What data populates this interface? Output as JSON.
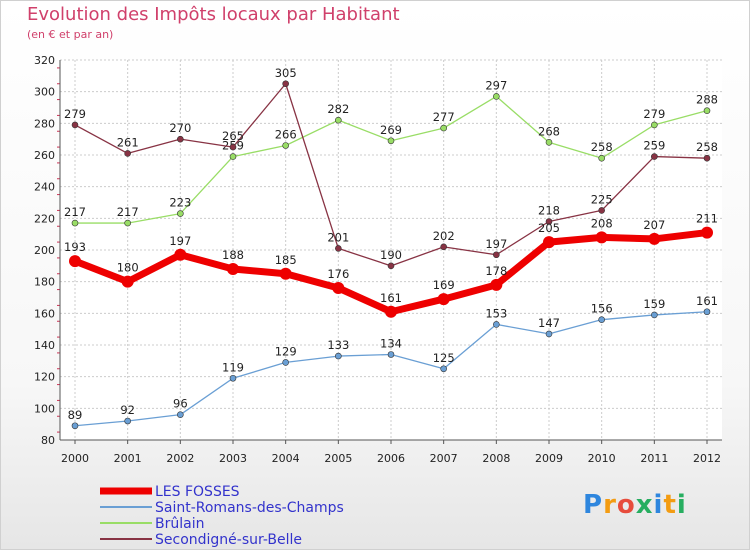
{
  "header": {
    "title": "Evolution des Impôts locaux par Habitant",
    "subtitle": "(en € et par an)"
  },
  "logo": {
    "text": "Proxiti"
  },
  "chart_data": {
    "type": "line",
    "title": "Evolution des Impôts locaux par Habitant",
    "subtitle": "(en € et par an)",
    "x": [
      "2000",
      "2001",
      "2002",
      "2003",
      "2004",
      "2005",
      "2006",
      "2007",
      "2008",
      "2009",
      "2010",
      "2011",
      "2012"
    ],
    "ylim": [
      80,
      320
    ],
    "yticks": [
      80,
      100,
      120,
      140,
      160,
      180,
      200,
      220,
      240,
      260,
      280,
      300,
      320
    ],
    "grid": true,
    "legend_position": "bottom-left",
    "series": [
      {
        "name": "LES FOSSES",
        "color": "#ee0000",
        "values": [
          193,
          180,
          197,
          188,
          185,
          176,
          161,
          169,
          178,
          205,
          208,
          207,
          211
        ]
      },
      {
        "name": "Saint-Romans-des-Champs",
        "color": "#6a9fd4",
        "values": [
          89,
          92,
          96,
          119,
          129,
          133,
          134,
          125,
          153,
          147,
          156,
          159,
          161
        ]
      },
      {
        "name": "Brûlain",
        "color": "#99dd66",
        "values": [
          217,
          217,
          223,
          259,
          266,
          282,
          269,
          277,
          297,
          268,
          258,
          279,
          288
        ]
      },
      {
        "name": "Secondigné-sur-Belle",
        "color": "#883344",
        "values": [
          279,
          261,
          270,
          265,
          305,
          201,
          190,
          202,
          197,
          218,
          225,
          259,
          258
        ]
      }
    ]
  }
}
